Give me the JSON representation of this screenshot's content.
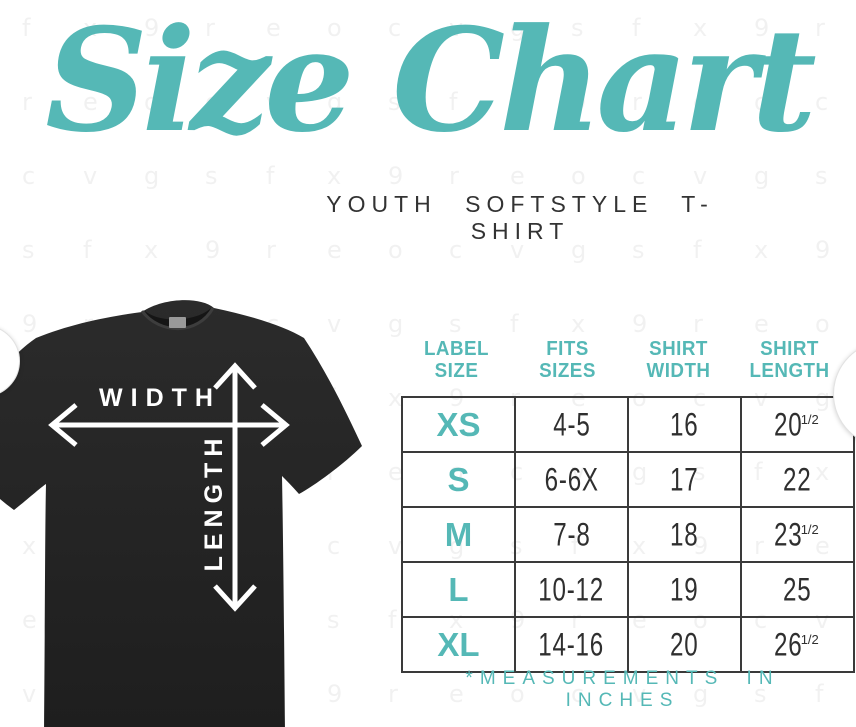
{
  "colors": {
    "accent_teal": "#55b8b6",
    "dark_text": "#333333",
    "table_border": "#3a3a3a",
    "shirt_body": "#242424",
    "background": "#ffffff"
  },
  "background": {
    "watermark_letters": [
      "f",
      "x",
      "9",
      "r",
      "e",
      "o",
      "c",
      "v",
      "g",
      "s"
    ]
  },
  "title": {
    "text": "Size Chart",
    "subtitle": "YOUTH SOFTSTYLE T-SHIRT"
  },
  "shirt": {
    "width_label": "WIDTH",
    "length_label": "LENGTH"
  },
  "size_table": {
    "headers": [
      {
        "line1": "LABEL",
        "line2": "SIZE"
      },
      {
        "line1": "FITS",
        "line2": "SIZES"
      },
      {
        "line1": "SHIRT",
        "line2": "WIDTH"
      },
      {
        "line1": "SHIRT",
        "line2": "LENGTH"
      }
    ],
    "rows": [
      {
        "label": "XS",
        "fits": "4-5",
        "width": "16",
        "length": "20",
        "length_frac": "1/2"
      },
      {
        "label": "S",
        "fits": "6-6X",
        "width": "17",
        "length": "22",
        "length_frac": ""
      },
      {
        "label": "M",
        "fits": "7-8",
        "width": "18",
        "length": "23",
        "length_frac": "1/2"
      },
      {
        "label": "L",
        "fits": "10-12",
        "width": "19",
        "length": "25",
        "length_frac": ""
      },
      {
        "label": "XL",
        "fits": "14-16",
        "width": "20",
        "length": "26",
        "length_frac": "1/2"
      }
    ],
    "footnote": "*MEASUREMENTS IN INCHES"
  },
  "chart_data": {
    "type": "table",
    "title": "Size Chart",
    "subtitle": "YOUTH SOFTSTYLE T-SHIRT",
    "columns": [
      "LABEL SIZE",
      "FITS SIZES",
      "SHIRT WIDTH",
      "SHIRT LENGTH"
    ],
    "rows": [
      [
        "XS",
        "4-5",
        16,
        20.5
      ],
      [
        "S",
        "6-6X",
        17,
        22
      ],
      [
        "M",
        "7-8",
        18,
        23.5
      ],
      [
        "L",
        "10-12",
        19,
        25
      ],
      [
        "XL",
        "14-16",
        20,
        26.5
      ]
    ],
    "units": "inches",
    "footnote": "*MEASUREMENTS IN INCHES"
  }
}
